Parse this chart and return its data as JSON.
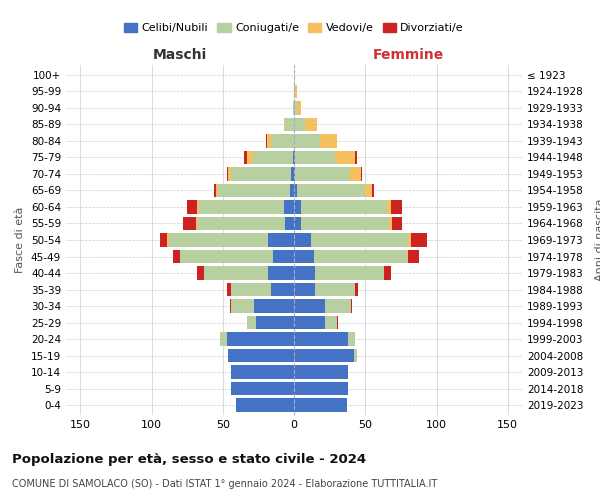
{
  "age_groups": [
    "0-4",
    "5-9",
    "10-14",
    "15-19",
    "20-24",
    "25-29",
    "30-34",
    "35-39",
    "40-44",
    "45-49",
    "50-54",
    "55-59",
    "60-64",
    "65-69",
    "70-74",
    "75-79",
    "80-84",
    "85-89",
    "90-94",
    "95-99",
    "100+"
  ],
  "birth_years": [
    "2019-2023",
    "2014-2018",
    "2009-2013",
    "2004-2008",
    "1999-2003",
    "1994-1998",
    "1989-1993",
    "1984-1988",
    "1979-1983",
    "1974-1978",
    "1969-1973",
    "1964-1968",
    "1959-1963",
    "1954-1958",
    "1949-1953",
    "1944-1948",
    "1939-1943",
    "1934-1938",
    "1929-1933",
    "1924-1928",
    "≤ 1923"
  ],
  "male": {
    "celibi": [
      41,
      44,
      44,
      46,
      47,
      27,
      28,
      16,
      18,
      15,
      18,
      6,
      7,
      3,
      2,
      1,
      0,
      0,
      0,
      0,
      0
    ],
    "coniugati": [
      0,
      0,
      0,
      0,
      5,
      6,
      16,
      28,
      45,
      65,
      70,
      62,
      60,
      50,
      42,
      28,
      16,
      6,
      1,
      0,
      0
    ],
    "vedovi": [
      0,
      0,
      0,
      0,
      0,
      0,
      0,
      0,
      0,
      0,
      1,
      1,
      1,
      2,
      2,
      4,
      3,
      1,
      0,
      0,
      0
    ],
    "divorziati": [
      0,
      0,
      0,
      0,
      0,
      0,
      1,
      3,
      5,
      5,
      5,
      9,
      7,
      1,
      1,
      2,
      1,
      0,
      0,
      0,
      0
    ]
  },
  "female": {
    "nubili": [
      37,
      38,
      38,
      42,
      38,
      22,
      22,
      15,
      15,
      14,
      12,
      5,
      5,
      2,
      1,
      1,
      0,
      0,
      0,
      0,
      0
    ],
    "coniugate": [
      0,
      0,
      0,
      2,
      5,
      8,
      18,
      28,
      48,
      65,
      68,
      62,
      60,
      48,
      38,
      28,
      18,
      8,
      2,
      1,
      0
    ],
    "vedove": [
      0,
      0,
      0,
      0,
      0,
      0,
      0,
      0,
      0,
      1,
      2,
      2,
      3,
      5,
      8,
      14,
      12,
      8,
      3,
      1,
      0
    ],
    "divorziate": [
      0,
      0,
      0,
      0,
      0,
      1,
      1,
      2,
      5,
      8,
      11,
      7,
      8,
      1,
      1,
      1,
      0,
      0,
      0,
      0,
      0
    ]
  },
  "colors": {
    "celibi": "#4472c4",
    "coniugati": "#b8cfa0",
    "vedovi": "#f4c060",
    "divorziati": "#cc2222"
  },
  "xlim": 160,
  "title": "Popolazione per età, sesso e stato civile - 2024",
  "subtitle": "COMUNE DI SAMOLACO (SO) - Dati ISTAT 1° gennaio 2024 - Elaborazione TUTTITALIA.IT",
  "xlabel_left": "Maschi",
  "xlabel_right": "Femmine",
  "ylabel_left": "Fasce di età",
  "ylabel_right": "Anni di nascita",
  "legend_labels": [
    "Celibi/Nubili",
    "Coniugati/e",
    "Vedovi/e",
    "Divorziati/e"
  ],
  "background_color": "#ffffff",
  "grid_color": "#cccccc"
}
